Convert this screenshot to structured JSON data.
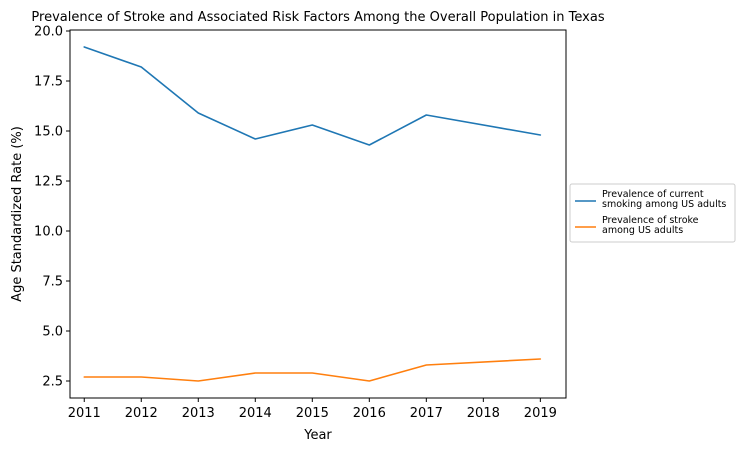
{
  "chart_data": {
    "type": "line",
    "title": "Prevalence of Stroke and Associated Risk Factors Among the Overall Population in Texas",
    "xlabel": "Year",
    "ylabel": "Age Standardized Rate (%)",
    "x": [
      2011,
      2012,
      2013,
      2014,
      2015,
      2016,
      2017,
      2018,
      2019
    ],
    "xlim": [
      2010.75,
      2019.45
    ],
    "ylim": [
      1.65,
      20.05
    ],
    "yticks": [
      2.5,
      5.0,
      7.5,
      10.0,
      12.5,
      15.0,
      17.5,
      20.0
    ],
    "ytick_labels": [
      "2.5",
      "5.0",
      "7.5",
      "10.0",
      "12.5",
      "15.0",
      "17.5",
      "20.0"
    ],
    "xtick_labels": [
      "2011",
      "2012",
      "2013",
      "2014",
      "2015",
      "2016",
      "2017",
      "2018",
      "2019"
    ],
    "grid": false,
    "legend_placement": "center-right-outside",
    "series": [
      {
        "name": "Prevalence of current smoking among US adults",
        "legend_lines": [
          "Prevalence of current",
          "smoking among US adults"
        ],
        "color": "#1f77b4",
        "x": [
          2011,
          2012,
          2013,
          2014,
          2015,
          2016,
          2017,
          2019
        ],
        "values": [
          19.2,
          18.2,
          15.9,
          14.6,
          15.3,
          14.3,
          15.8,
          14.8
        ]
      },
      {
        "name": "Prevalence of stroke among US adults",
        "legend_lines": [
          "Prevalence of stroke",
          "among US adults"
        ],
        "color": "#ff7f0e",
        "x": [
          2011,
          2012,
          2013,
          2014,
          2015,
          2016,
          2017,
          2019
        ],
        "values": [
          2.7,
          2.7,
          2.5,
          2.9,
          2.9,
          2.5,
          3.3,
          3.6
        ]
      }
    ]
  }
}
